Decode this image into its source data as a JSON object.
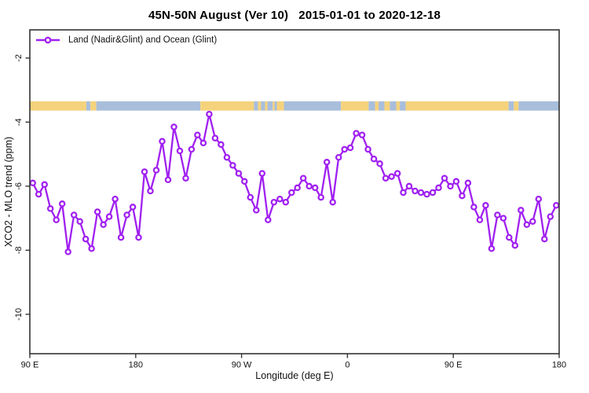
{
  "title": "45N-50N August (Ver 10)   2015-01-01 to 2020-12-18",
  "legend": {
    "label": "Land (Nadir&Glint) and Ocean (Glint)"
  },
  "axes": {
    "x_label": "Longitude (deg E)",
    "y_label": "XCO2 - MLO trend (ppm)",
    "x_ticks": [
      {
        "value": 90,
        "label": "90 E"
      },
      {
        "value": 180,
        "label": "180"
      },
      {
        "value": 270,
        "label": "90 W"
      },
      {
        "value": 360,
        "label": "0"
      },
      {
        "value": 450,
        "label": "90 E"
      },
      {
        "value": 540,
        "label": "180"
      }
    ],
    "y_ticks": [
      {
        "value": -2,
        "label": "-2"
      },
      {
        "value": -4,
        "label": "-4"
      },
      {
        "value": -6,
        "label": "-6"
      },
      {
        "value": -8,
        "label": "-8"
      },
      {
        "value": -10,
        "label": "-10"
      }
    ]
  },
  "colors": {
    "line": "#A020F0",
    "land": "#F5D27C",
    "ocean": "#A9BEDB",
    "axis": "#333333",
    "text": "#111111"
  },
  "chart_data": {
    "type": "line",
    "title": "45N-50N August (Ver 10)   2015-01-01 to 2020-12-18",
    "xlabel": "Longitude (deg E)",
    "ylabel": "XCO2 - MLO trend (ppm)",
    "xlim": [
      90,
      540
    ],
    "ylim": [
      -11.23,
      -1.12
    ],
    "grid": false,
    "legend_position": "top-left",
    "x_axis_note": "longitude axis runs 90E eastward around the globe to 180 (values 90-540 unwrapped deg E)",
    "series": [
      {
        "name": "Land (Nadir&Glint) and Ocean (Glint)",
        "color": "#A020F0",
        "marker": "open-circle",
        "x": [
          92.5,
          97.5,
          102.5,
          107.5,
          112.5,
          117.5,
          122.5,
          127.5,
          132.5,
          137.5,
          142.5,
          147.5,
          152.5,
          157.5,
          162.5,
          167.5,
          172.5,
          177.5,
          182.5,
          187.5,
          192.5,
          197.5,
          202.5,
          207.5,
          212.5,
          217.5,
          222.5,
          227.5,
          232.5,
          237.5,
          242.5,
          247.5,
          252.5,
          257.5,
          262.5,
          267.5,
          272.5,
          277.5,
          282.5,
          287.5,
          292.5,
          297.5,
          302.5,
          307.5,
          312.5,
          317.5,
          322.5,
          327.5,
          332.5,
          337.5,
          342.5,
          347.5,
          352.5,
          357.5,
          362.5,
          367.5,
          372.5,
          377.5,
          382.5,
          387.5,
          392.5,
          397.5,
          402.5,
          407.5,
          412.5,
          417.5,
          422.5,
          427.5,
          432.5,
          437.5,
          442.5,
          447.5,
          452.5,
          457.5,
          462.5,
          467.5,
          472.5,
          477.5,
          482.5,
          487.5,
          492.5,
          497.5,
          502.5,
          507.5,
          512.5,
          517.5,
          522.5,
          527.5,
          532.5,
          537.5
        ],
        "y": [
          -5.9,
          -6.25,
          -5.95,
          -6.7,
          -7.05,
          -6.55,
          -8.05,
          -6.9,
          -7.1,
          -7.65,
          -7.95,
          -6.8,
          -7.2,
          -6.95,
          -6.4,
          -7.6,
          -6.9,
          -6.65,
          -7.6,
          -5.55,
          -6.15,
          -5.5,
          -4.6,
          -5.8,
          -4.15,
          -4.9,
          -5.75,
          -4.85,
          -4.4,
          -4.65,
          -3.75,
          -4.5,
          -4.7,
          -5.1,
          -5.35,
          -5.6,
          -5.85,
          -6.35,
          -6.75,
          -5.6,
          -7.05,
          -6.5,
          -6.4,
          -6.5,
          -6.2,
          -6.05,
          -5.75,
          -6.0,
          -6.05,
          -6.35,
          -5.25,
          -6.5,
          -5.1,
          -4.85,
          -4.8,
          -4.35,
          -4.4,
          -4.85,
          -5.15,
          -5.3,
          -5.75,
          -5.7,
          -5.6,
          -6.2,
          -6.0,
          -6.15,
          -6.2,
          -6.25,
          -6.2,
          -6.05,
          -5.75,
          -6.0,
          -5.85,
          -6.3,
          -5.9,
          -6.65,
          -7.05,
          -6.6,
          -7.95,
          -6.9,
          -7.0,
          -7.6,
          -7.85,
          -6.75,
          -7.2,
          -7.1,
          -6.4,
          -7.65,
          -6.95,
          -6.6
        ]
      }
    ],
    "surface_band": {
      "description": "land/ocean strip along 45N-50N",
      "y_value_range": [
        -3.64,
        -3.35
      ],
      "segments": [
        {
          "from": 90,
          "to": 138,
          "type": "land"
        },
        {
          "from": 138,
          "to": 141.5,
          "type": "ocean"
        },
        {
          "from": 141.5,
          "to": 146.5,
          "type": "land"
        },
        {
          "from": 146.5,
          "to": 235,
          "type": "ocean"
        },
        {
          "from": 235,
          "to": 280.5,
          "type": "land"
        },
        {
          "from": 280.5,
          "to": 284,
          "type": "ocean"
        },
        {
          "from": 284,
          "to": 286.5,
          "type": "land"
        },
        {
          "from": 286.5,
          "to": 290,
          "type": "ocean"
        },
        {
          "from": 290,
          "to": 292,
          "type": "land"
        },
        {
          "from": 292,
          "to": 296.5,
          "type": "ocean"
        },
        {
          "from": 296.5,
          "to": 298,
          "type": "land"
        },
        {
          "from": 298,
          "to": 300,
          "type": "ocean"
        },
        {
          "from": 300,
          "to": 306,
          "type": "land"
        },
        {
          "from": 306,
          "to": 354.5,
          "type": "ocean"
        },
        {
          "from": 354.5,
          "to": 378,
          "type": "land"
        },
        {
          "from": 378,
          "to": 383.5,
          "type": "ocean"
        },
        {
          "from": 383.5,
          "to": 386.5,
          "type": "land"
        },
        {
          "from": 386.5,
          "to": 391.5,
          "type": "ocean"
        },
        {
          "from": 391.5,
          "to": 396,
          "type": "land"
        },
        {
          "from": 396,
          "to": 401.5,
          "type": "ocean"
        },
        {
          "from": 401.5,
          "to": 404.5,
          "type": "land"
        },
        {
          "from": 404.5,
          "to": 409.5,
          "type": "ocean"
        },
        {
          "from": 409.5,
          "to": 497,
          "type": "land"
        },
        {
          "from": 497,
          "to": 501.5,
          "type": "ocean"
        },
        {
          "from": 501.5,
          "to": 505.5,
          "type": "land"
        },
        {
          "from": 505.5,
          "to": 540,
          "type": "ocean"
        }
      ]
    }
  }
}
